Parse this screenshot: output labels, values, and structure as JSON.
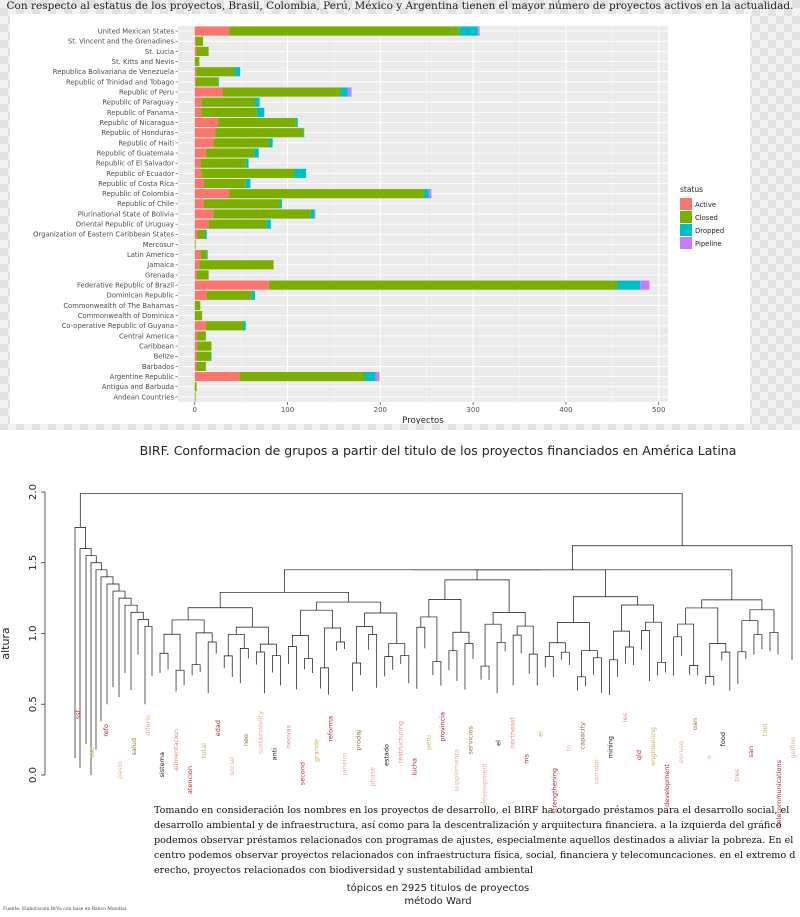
{
  "header": {
    "title": "Con respecto al estatus de los proyectos, Brasil, Colombia, Perú, México y Argentina tienen el mayor número de proyectos  activos en la actualidad."
  },
  "chart_data": [
    {
      "type": "bar",
      "orientation": "horizontal",
      "stacked": true,
      "categories": [
        "United Mexican States",
        "St. Vincent and the Grenadines",
        "St. Lucia",
        "St. Kitts and Nevis",
        "Republica Bolivariana de Venezuela",
        "Republic of Trinidad and Tobago",
        "Republic of Peru",
        "Republic of Paraguay",
        "Republic of Panama",
        "Republic of Nicaragua",
        "Republic of Honduras",
        "Republic of Haiti",
        "Republic of Guatemala",
        "Republic of El Salvador",
        "Republic of Ecuador",
        "Republic of Costa Rica",
        "Republic of Colombia",
        "Republic of Chile",
        "Plurinational State of Bolivia",
        "Oriental Republic of Uruguay",
        "Organization of Eastern Caribbean States",
        "Mercosur",
        "Latin America",
        "Jamaica",
        "Grenada",
        "Federative Republic of Brazil",
        "Dominican Republic",
        "Commonwealth of The Bahamas",
        "Commonwealth of Dominica",
        "Co-operative Republic of Guyana",
        "Central America",
        "Caribbean",
        "Belize",
        "Barbados",
        "Argentine Republic",
        "Antigua and Barbuda",
        "Andean Countries"
      ],
      "series": [
        {
          "name": "Active",
          "color": "#F8766D",
          "values": [
            37,
            1,
            2,
            0,
            2,
            1,
            30,
            7,
            7,
            25,
            22,
            20,
            12,
            6,
            7,
            10,
            37,
            10,
            20,
            15,
            3,
            0,
            6,
            5,
            2,
            80,
            13,
            0,
            0,
            12,
            3,
            3,
            2,
            2,
            48,
            0,
            0
          ]
        },
        {
          "name": "Closed",
          "color": "#7CAE00",
          "values": [
            248,
            8,
            13,
            5,
            41,
            24,
            127,
            58,
            60,
            84,
            95,
            60,
            52,
            49,
            100,
            45,
            210,
            82,
            105,
            62,
            8,
            1,
            7,
            80,
            13,
            375,
            48,
            6,
            8,
            40,
            9,
            15,
            15,
            10,
            135,
            2,
            1
          ]
        },
        {
          "name": "Dropped",
          "color": "#00BFC4",
          "values": [
            20,
            0,
            0,
            0,
            6,
            1,
            8,
            5,
            8,
            2,
            1,
            4,
            5,
            3,
            13,
            5,
            5,
            2,
            4,
            5,
            2,
            0,
            1,
            0,
            0,
            25,
            4,
            0,
            0,
            3,
            0,
            0,
            1,
            0,
            12,
            0,
            0
          ]
        },
        {
          "name": "Pipeline",
          "color": "#C77CFF",
          "values": [
            2,
            0,
            0,
            0,
            0,
            0,
            4,
            0,
            0,
            0,
            0,
            0,
            0,
            0,
            0,
            0,
            3,
            0,
            1,
            0,
            0,
            0,
            0,
            0,
            0,
            10,
            0,
            0,
            0,
            0,
            0,
            0,
            0,
            0,
            4,
            0,
            0
          ]
        }
      ],
      "xlabel": "Proyectos",
      "xlim": [
        -18,
        510
      ],
      "xticks": [
        0,
        100,
        200,
        300,
        400,
        500
      ],
      "legend": {
        "title": "status",
        "position": "right"
      },
      "grid": true
    },
    {
      "type": "dendrogram",
      "title": "BIRF. Conformacion de grupos a partir del titulo de los proyectos financiados en América Latina",
      "ylabel": "altura",
      "ylim": [
        -0.1,
        2.05
      ],
      "yticks": [
        "0.0",
        "0.5",
        "1.0",
        "1.5",
        "2.0"
      ],
      "leaf_labels": [
        "sst",
        "sac",
        "refo",
        "pasto",
        "salud",
        "diferio",
        "sistema",
        "alimentacion",
        "atencion",
        "total",
        "edad",
        "social",
        "neo",
        "sustainability",
        "anti",
        "neovas",
        "second",
        "grande",
        "reforma",
        "janeiro",
        "prodaj",
        "phase",
        "estado",
        "restructuring",
        "lucha",
        "peru",
        "provincia",
        "supplementa",
        "servicios",
        "development",
        "el",
        "northeast",
        "ms",
        "el",
        "strengthening",
        "to",
        "capacity",
        "corridor",
        "mining",
        "ies",
        "qld",
        "engineering",
        "development",
        "eeruso",
        "oan",
        "e",
        "food",
        "tres",
        "san",
        "tnet",
        "telecommunications",
        "gelfiso"
      ]
    }
  ],
  "body_text": "Tomando en consideración los nombres en los proyectos de desarrollo, el BIRF ha otorgado préstamos para el desarrollo social, el desarrollo ambiental y de infraestructura, así como para la descentralización y arquitectura financiera. a la izquierda del gráfico podemos observar préstamos relacionados con programas de ajustes, especialmente aquellos destinados a aliviar la pobreza. En el centro podemos observar proyectos relacionados con infraestructura física, social, financiera y telecomuncaciones. en el extremo d erecho, proyectos relacionados con biodiversidad y sustentabilidad ambiental",
  "subtitle": {
    "line1": "tópicos en 2925 titulos de proyectos",
    "line2": "método Ward"
  },
  "source_note": "Fuente: Elaboración BrVa con base en Banco Mundial"
}
